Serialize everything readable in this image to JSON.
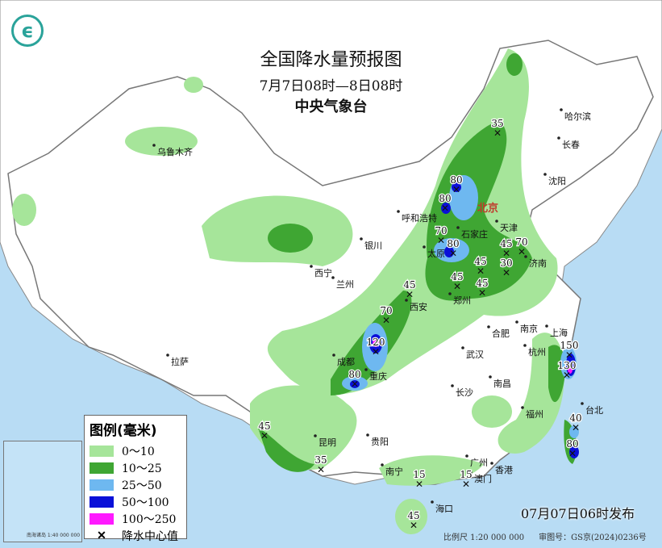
{
  "header": {
    "title": "全国降水量预报图",
    "period": "7月7日08时—8日08时",
    "agency": "中央气象台"
  },
  "colors": {
    "sea": "#b8dcf4",
    "land": "#ffffff",
    "light_green": "#a6e59a",
    "green": "#3fa633",
    "light_blue": "#6eb8f0",
    "blue": "#0a10d8",
    "magenta": "#ff19ff"
  },
  "legend": {
    "title": "图例(毫米)",
    "items": [
      {
        "label": "0～10",
        "color": "#a6e59a"
      },
      {
        "label": "10～25",
        "color": "#3fa633"
      },
      {
        "label": "25～50",
        "color": "#6eb8f0"
      },
      {
        "label": "50～100",
        "color": "#0a10d8"
      },
      {
        "label": "100～250",
        "color": "#ff19ff"
      }
    ],
    "center_label": "降水中心值",
    "center_icon": "x-mark-icon"
  },
  "capital": "北京",
  "cities": [
    "乌鲁木齐",
    "哈尔滨",
    "长春",
    "沈阳",
    "呼和浩特",
    "天津",
    "太原",
    "石家庄",
    "济南",
    "银川",
    "西宁",
    "兰州",
    "郑州",
    "西安",
    "合肥",
    "南京",
    "上海",
    "杭州",
    "成都",
    "重庆",
    "武汉",
    "拉萨",
    "长沙",
    "南昌",
    "福州",
    "台北",
    "贵阳",
    "昆明",
    "南宁",
    "广州",
    "澳门",
    "香港",
    "海口"
  ],
  "centers": [
    "35",
    "80",
    "80",
    "70",
    "80",
    "45",
    "45",
    "70",
    "45",
    "30",
    "45",
    "45",
    "70",
    "120",
    "80",
    "150",
    "130",
    "40",
    "80",
    "45",
    "35",
    "15",
    "15",
    "45"
  ],
  "publish": "07月07日06时发布",
  "footer": {
    "scale": "比例尺 1:20 000 000",
    "approval": "审图号：GS京(2024)0236号"
  },
  "inset": {
    "caption": "南海诸岛 1:40 000 000"
  }
}
